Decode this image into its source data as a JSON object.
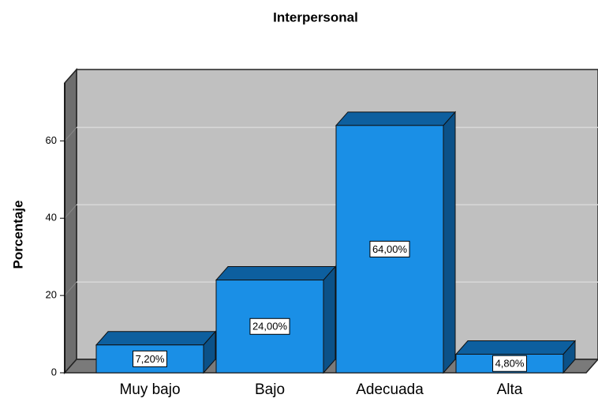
{
  "chart_data": {
    "type": "bar3d",
    "title": "Interpersonal",
    "y_label": "Porcentaje",
    "categories": [
      "Muy bajo",
      "Bajo",
      "Adecuada",
      "Alta"
    ],
    "values": [
      7.2,
      24,
      64,
      4.8
    ],
    "value_labels": [
      "7,20%",
      "24,00%",
      "64,00%",
      "4,80%"
    ],
    "color": "#1a8fe6",
    "ylim": [
      0,
      75
    ],
    "yticks": [
      0,
      20,
      40,
      60
    ],
    "grid": true
  }
}
